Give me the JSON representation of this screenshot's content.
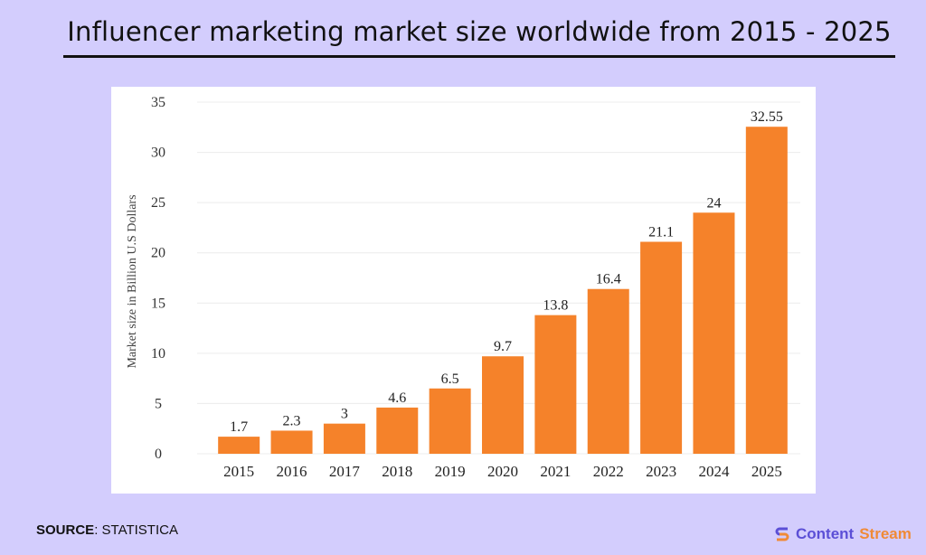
{
  "title": "Influencer marketing market size worldwide from 2015 - 2025",
  "source": {
    "label": "SOURCE",
    "value": ": STATISTICA"
  },
  "brand": {
    "word1": "Content",
    "word2": "Stream",
    "color1": "#5b4fd6",
    "color2": "#f08a36"
  },
  "colors": {
    "background": "#d3cdfd",
    "bar": "#f5822a",
    "panel": "#ffffff"
  },
  "chart_data": {
    "type": "bar",
    "title": "",
    "xlabel": "",
    "ylabel": "Market size in Billion U.S Dollars",
    "categories": [
      "2015",
      "2016",
      "2017",
      "2018",
      "2019",
      "2020",
      "2021",
      "2022",
      "2023",
      "2024",
      "2025"
    ],
    "values": [
      1.7,
      2.3,
      3,
      4.6,
      6.5,
      9.7,
      13.8,
      16.4,
      21.1,
      24,
      32.55
    ],
    "data_labels": [
      "1.7",
      "2.3",
      "3",
      "4.6",
      "6.5",
      "9.7",
      "13.8",
      "16.4",
      "21.1",
      "24",
      "32.55"
    ],
    "yticks": [
      0,
      5,
      10,
      15,
      20,
      25,
      30,
      35
    ],
    "ylim": [
      0,
      35
    ],
    "grid": true,
    "legend": "none"
  }
}
